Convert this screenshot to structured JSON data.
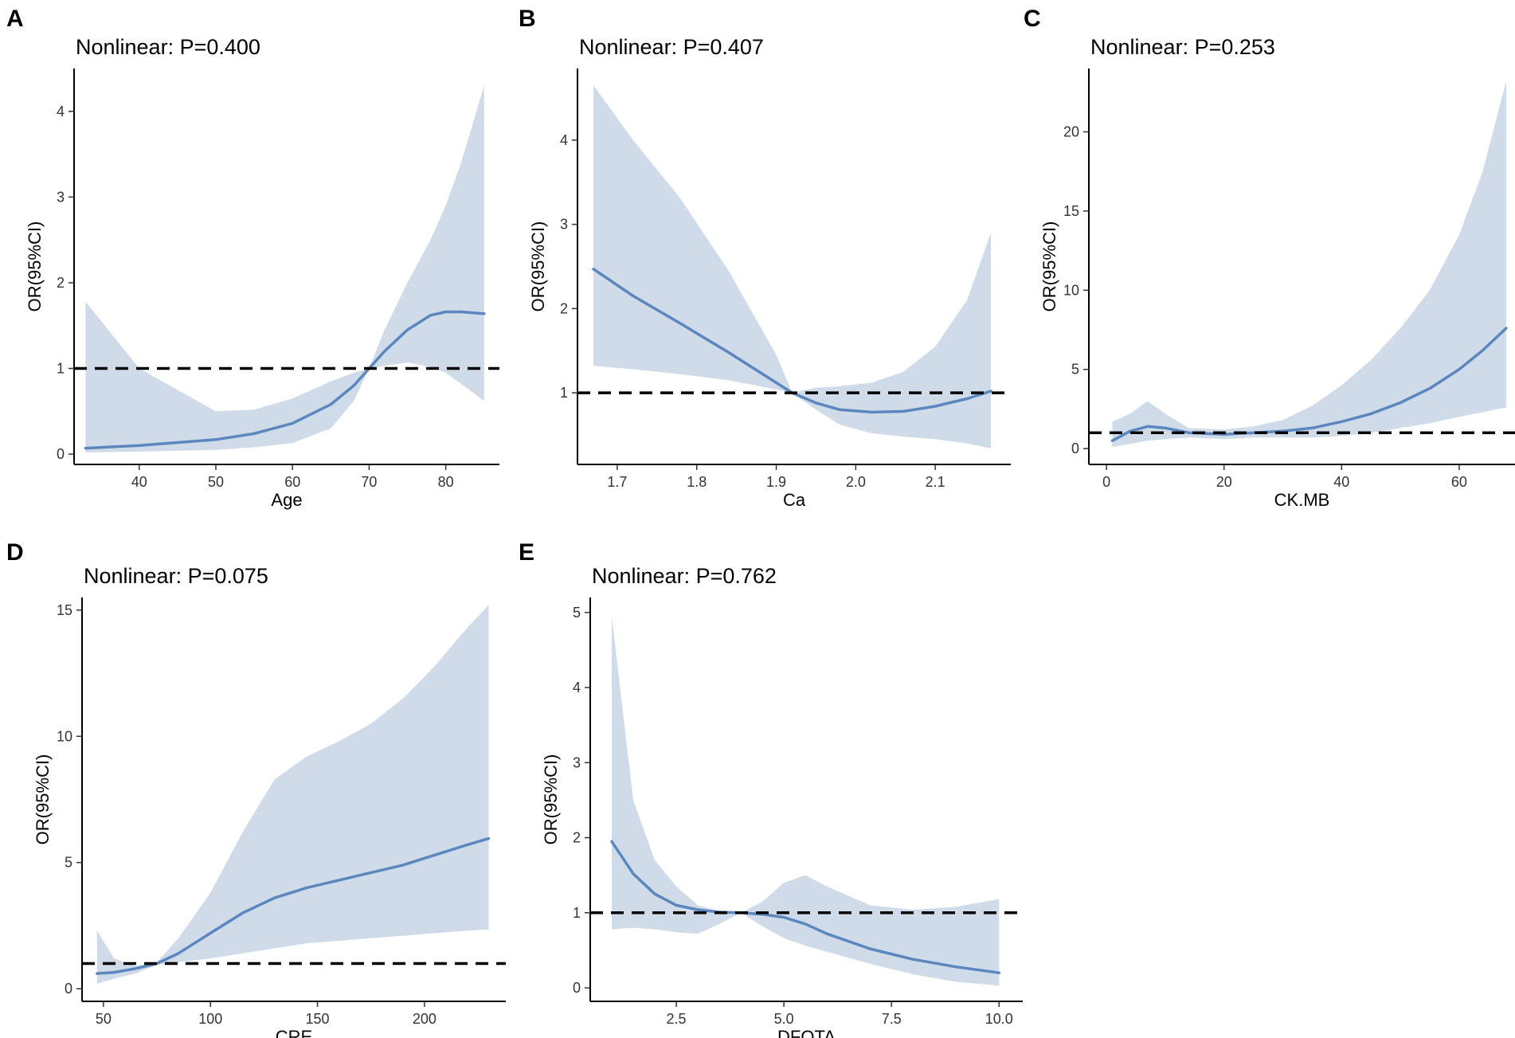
{
  "colors": {
    "band": "#cfdbe9",
    "line": "#5b87be",
    "ref": "#000000"
  },
  "chart_data": [
    {
      "panel": "A",
      "type": "line",
      "title": "Nonlinear: P=0.400",
      "xlabel": "Age",
      "ylabel": "OR(95%CI)",
      "xlim": [
        31.5,
        87
      ],
      "ylim": [
        -0.12,
        4.5
      ],
      "ref_y": 1,
      "xticks": [
        40,
        50,
        60,
        70,
        80
      ],
      "xtick_labels": [
        "40",
        "50",
        "60",
        "70",
        "80"
      ],
      "yticks": [
        0,
        1,
        2,
        3,
        4
      ],
      "ytick_labels": [
        "0",
        "1",
        "2",
        "3",
        "4"
      ],
      "x": [
        33,
        40,
        50,
        55,
        60,
        65,
        68,
        70,
        72,
        75,
        78,
        80,
        82,
        85
      ],
      "y": [
        0.07,
        0.1,
        0.17,
        0.24,
        0.36,
        0.58,
        0.8,
        1.0,
        1.2,
        1.45,
        1.62,
        1.66,
        1.66,
        1.64
      ],
      "lower": [
        0.02,
        0.03,
        0.05,
        0.08,
        0.13,
        0.3,
        0.62,
        1.0,
        1.03,
        1.07,
        1.02,
        0.95,
        0.82,
        0.62
      ],
      "upper": [
        1.78,
        1.0,
        0.5,
        0.52,
        0.65,
        0.85,
        0.95,
        1.0,
        1.45,
        2.0,
        2.5,
        2.9,
        3.4,
        4.3
      ]
    },
    {
      "panel": "B",
      "type": "line",
      "title": "Nonlinear: P=0.407",
      "xlabel": "Ca",
      "ylabel": "OR(95%CI)",
      "xlim": [
        1.65,
        2.195
      ],
      "ylim": [
        0.15,
        4.85
      ],
      "ref_y": 1,
      "xticks": [
        1.7,
        1.8,
        1.9,
        2.0,
        2.1
      ],
      "xtick_labels": [
        "1.7",
        "1.8",
        "1.9",
        "2.0",
        "2.1"
      ],
      "yticks": [
        1,
        2,
        3,
        4
      ],
      "ytick_labels": [
        "1",
        "2",
        "3",
        "4"
      ],
      "x": [
        1.67,
        1.72,
        1.78,
        1.84,
        1.9,
        1.92,
        1.95,
        1.98,
        2.02,
        2.06,
        2.1,
        2.14,
        2.17
      ],
      "y": [
        2.47,
        2.15,
        1.82,
        1.48,
        1.12,
        1.0,
        0.88,
        0.8,
        0.77,
        0.78,
        0.84,
        0.93,
        1.02
      ],
      "lower": [
        1.32,
        1.28,
        1.22,
        1.15,
        1.04,
        1.0,
        0.8,
        0.62,
        0.52,
        0.48,
        0.45,
        0.4,
        0.34
      ],
      "upper": [
        4.65,
        4.0,
        3.3,
        2.45,
        1.45,
        1.0,
        1.06,
        1.08,
        1.12,
        1.25,
        1.55,
        2.1,
        2.9
      ]
    },
    {
      "panel": "C",
      "type": "line",
      "title": "Nonlinear: P=0.253",
      "xlabel": "CK.MB",
      "ylabel": "OR(95%CI)",
      "xlim": [
        -3,
        69.5
      ],
      "ylim": [
        -1,
        24
      ],
      "ref_y": 1,
      "xticks": [
        0,
        20,
        40,
        60
      ],
      "xtick_labels": [
        "0",
        "20",
        "40",
        "60"
      ],
      "yticks": [
        0,
        5,
        10,
        15,
        20
      ],
      "ytick_labels": [
        "0",
        "5",
        "10",
        "15",
        "20"
      ],
      "x": [
        1,
        4,
        7,
        10,
        14,
        20,
        25,
        30,
        35,
        40,
        45,
        50,
        55,
        60,
        64,
        68
      ],
      "y": [
        0.5,
        1.1,
        1.4,
        1.3,
        1.0,
        0.9,
        1.0,
        1.1,
        1.3,
        1.7,
        2.2,
        2.9,
        3.8,
        5.0,
        6.2,
        7.6
      ],
      "lower": [
        0.1,
        0.3,
        0.5,
        0.6,
        0.7,
        0.6,
        0.7,
        0.7,
        0.7,
        0.8,
        1.0,
        1.3,
        1.6,
        2.0,
        2.3,
        2.6
      ],
      "upper": [
        1.7,
        2.2,
        3.0,
        2.2,
        1.3,
        1.2,
        1.4,
        1.8,
        2.7,
        4.0,
        5.6,
        7.6,
        10.0,
        13.5,
        17.5,
        23.2
      ]
    },
    {
      "panel": "D",
      "type": "line",
      "title": "Nonlinear: P=0.075",
      "xlabel": "CRE",
      "ylabel": "OR(95%CI)",
      "xlim": [
        40,
        238
      ],
      "ylim": [
        -0.5,
        15.5
      ],
      "ref_y": 1,
      "xticks": [
        50,
        100,
        150,
        200
      ],
      "xtick_labels": [
        "50",
        "100",
        "150",
        "200"
      ],
      "yticks": [
        0,
        5,
        10,
        15
      ],
      "ytick_labels": [
        "0",
        "5",
        "10",
        "15"
      ],
      "x": [
        47,
        55,
        65,
        75,
        85,
        100,
        115,
        130,
        145,
        160,
        175,
        190,
        205,
        220,
        230
      ],
      "y": [
        0.6,
        0.65,
        0.8,
        1.0,
        1.4,
        2.2,
        3.0,
        3.6,
        4.0,
        4.3,
        4.6,
        4.9,
        5.3,
        5.7,
        5.95
      ],
      "lower": [
        0.2,
        0.4,
        0.6,
        0.95,
        1.05,
        1.2,
        1.4,
        1.6,
        1.8,
        1.9,
        2.0,
        2.1,
        2.2,
        2.3,
        2.35
      ],
      "upper": [
        2.3,
        1.2,
        0.9,
        1.05,
        2.0,
        3.8,
        6.2,
        8.3,
        9.2,
        9.8,
        10.5,
        11.5,
        12.8,
        14.3,
        15.2
      ]
    },
    {
      "panel": "E",
      "type": "line",
      "title": "Nonlinear: P=0.762",
      "xlabel": "DFOTA",
      "ylabel": "OR(95%CI)",
      "xlim": [
        0.5,
        10.55
      ],
      "ylim": [
        -0.18,
        5.2
      ],
      "ref_y": 1,
      "xticks": [
        2.5,
        5.0,
        7.5,
        10.0
      ],
      "xtick_labels": [
        "2.5",
        "5.0",
        "7.5",
        "10.0"
      ],
      "yticks": [
        0,
        1,
        2,
        3,
        4,
        5
      ],
      "ytick_labels": [
        "0",
        "1",
        "2",
        "3",
        "4",
        "5"
      ],
      "x": [
        1.0,
        1.5,
        2.0,
        2.5,
        3.0,
        3.5,
        4.0,
        4.5,
        5.0,
        5.5,
        6.0,
        7.0,
        8.0,
        9.0,
        10.0
      ],
      "y": [
        1.95,
        1.52,
        1.25,
        1.1,
        1.04,
        1.01,
        1.0,
        0.98,
        0.94,
        0.85,
        0.72,
        0.52,
        0.38,
        0.28,
        0.2
      ],
      "lower": [
        0.78,
        0.8,
        0.78,
        0.74,
        0.72,
        0.85,
        1.0,
        0.82,
        0.66,
        0.56,
        0.48,
        0.32,
        0.18,
        0.08,
        0.03
      ],
      "upper": [
        4.95,
        2.5,
        1.7,
        1.35,
        1.1,
        1.02,
        1.0,
        1.15,
        1.4,
        1.5,
        1.35,
        1.1,
        1.04,
        1.08,
        1.18
      ]
    }
  ]
}
